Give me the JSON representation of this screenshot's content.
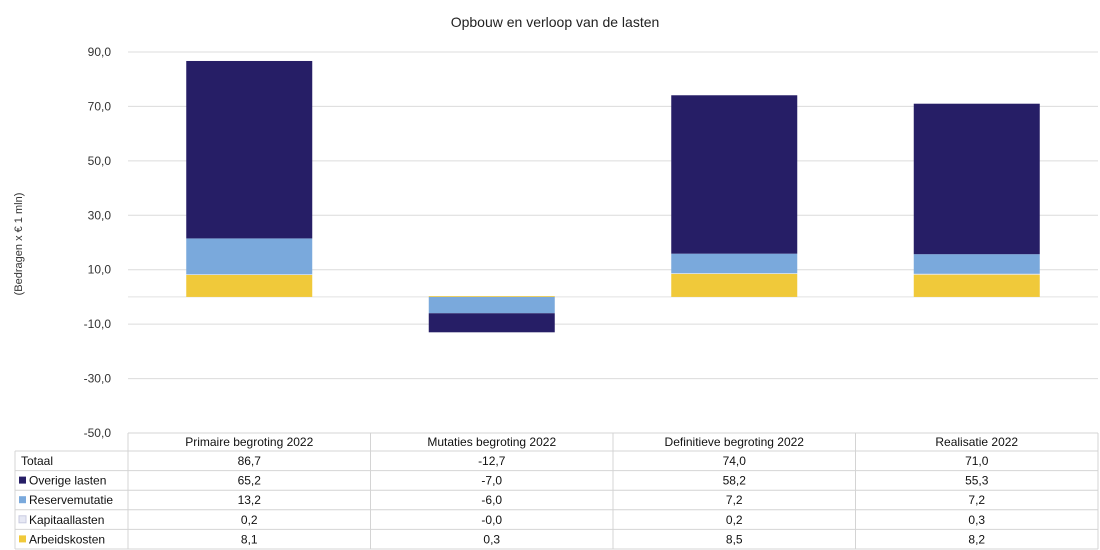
{
  "chart_data": {
    "type": "bar",
    "stacked": true,
    "title": "Opbouw en verloop van de lasten",
    "ylabel": "(Bedragen x € 1 mln)",
    "xlabel": "",
    "ylim": [
      -50,
      90
    ],
    "yticks": [
      90,
      70,
      50,
      30,
      10,
      -10,
      -30,
      -50
    ],
    "ytick_labels": [
      "90,0",
      "70,0",
      "50,0",
      "30,0",
      "10,0",
      "-10,0",
      "-30,0",
      "-50,0"
    ],
    "grid": true,
    "legend_placement": "data-table-left",
    "categories": [
      "Primaire begroting 2022",
      "Mutaties begroting 2022",
      "Definitieve begroting 2022",
      "Realisatie 2022"
    ],
    "series": [
      {
        "name": "Arbeidskosten",
        "color": "#f0c93a",
        "values": [
          8.1,
          0.3,
          8.5,
          8.2
        ],
        "labels": [
          "8,1",
          "0,3",
          "8,5",
          "8,2"
        ]
      },
      {
        "name": "Kapitaallasten",
        "color": "#e6e8f4",
        "values": [
          0.2,
          0.0,
          0.2,
          0.3
        ],
        "labels": [
          "0,2",
          "-0,0",
          "0,2",
          "0,3"
        ]
      },
      {
        "name": "Reservemutatie",
        "color": "#7aa9dc",
        "values": [
          13.2,
          -6.0,
          7.2,
          7.2
        ],
        "labels": [
          "13,2",
          "-6,0",
          "7,2",
          "7,2"
        ]
      },
      {
        "name": "Overige lasten",
        "color": "#261e66",
        "values": [
          65.2,
          -7.0,
          58.2,
          55.3
        ],
        "labels": [
          "65,2",
          "-7,0",
          "58,2",
          "55,3"
        ]
      }
    ],
    "table_rows": [
      {
        "name": "Totaal",
        "values": [
          "86,7",
          "-12,7",
          "74,0",
          "71,0"
        ]
      },
      {
        "name": "Overige lasten",
        "color": "#261e66",
        "values": [
          "65,2",
          "-7,0",
          "58,2",
          "55,3"
        ]
      },
      {
        "name": "Reservemutatie",
        "color": "#7aa9dc",
        "values": [
          "13,2",
          "-6,0",
          "7,2",
          "7,2"
        ]
      },
      {
        "name": "Kapitaallasten",
        "color": "#e6e8f4",
        "values": [
          "0,2",
          "-0,0",
          "0,2",
          "0,3"
        ]
      },
      {
        "name": "Arbeidskosten",
        "color": "#f0c93a",
        "values": [
          "8,1",
          "0,3",
          "8,5",
          "8,2"
        ]
      }
    ]
  }
}
